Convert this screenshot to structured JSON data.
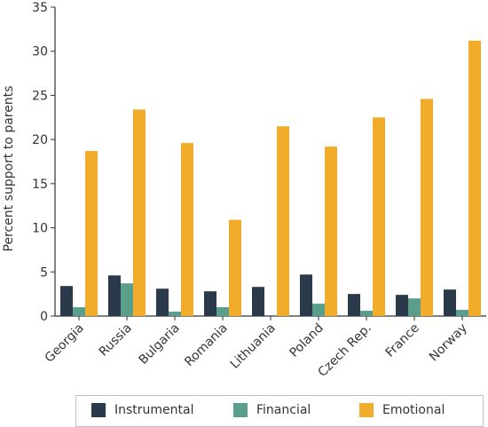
{
  "chart_data": {
    "type": "bar",
    "ylabel": "Percent support to parents",
    "ylim": [
      0,
      35
    ],
    "yticks": [
      0,
      5,
      10,
      15,
      20,
      25,
      30,
      35
    ],
    "grid": false,
    "legend_position": "bottom",
    "categories": [
      "Georgia",
      "Russia",
      "Bulgaria",
      "Romania",
      "Lithuania",
      "Poland",
      "Czech Rep.",
      "France",
      "Norway"
    ],
    "series": [
      {
        "name": "Instrumental",
        "color": "#2b3a4a",
        "values": [
          3.4,
          4.6,
          3.1,
          2.8,
          3.3,
          4.7,
          2.5,
          2.4,
          3.0
        ]
      },
      {
        "name": "Financial",
        "color": "#5a9e8c",
        "values": [
          1.0,
          3.7,
          0.5,
          1.0,
          0.0,
          1.4,
          0.6,
          2.0,
          0.7
        ]
      },
      {
        "name": "Emotional",
        "color": "#f0ac2a",
        "values": [
          18.7,
          23.4,
          19.6,
          10.9,
          21.5,
          19.2,
          22.5,
          24.6,
          31.2
        ]
      }
    ]
  }
}
